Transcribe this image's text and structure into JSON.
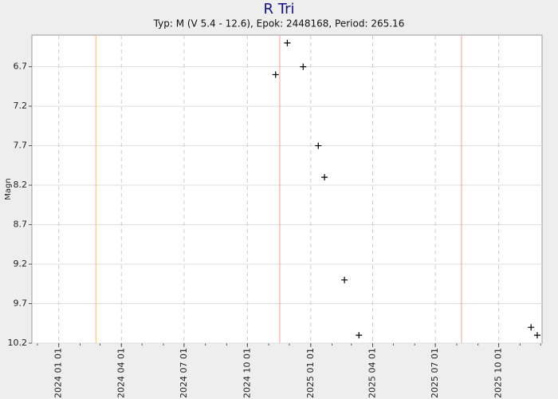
{
  "chart_data": {
    "type": "scatter",
    "title": "R Tri",
    "subtitle": "Typ: M (V 5.4 - 12.6), Epok: 2448168, Period: 265.16",
    "ylabel": "Magn",
    "x": [
      "2024-11-11",
      "2024-11-28",
      "2024-12-21",
      "2025-01-12",
      "2025-01-21",
      "2025-02-19",
      "2025-03-12",
      "2025-11-17",
      "2025-11-26"
    ],
    "values": [
      6.8,
      6.4,
      6.7,
      7.7,
      8.1,
      9.4,
      10.1,
      10.0,
      10.1
    ],
    "color": "#000000",
    "xlim": [
      "2023-11-23",
      "2025-12-03"
    ],
    "xticks": [
      {
        "value": "2024-01-01",
        "label": "2024 01 01"
      },
      {
        "value": "2024-04-01",
        "label": "2024 04 01"
      },
      {
        "value": "2024-07-01",
        "label": "2024 07 01"
      },
      {
        "value": "2024-10-01",
        "label": "2024 10 01"
      },
      {
        "value": "2025-01-01",
        "label": "2025 01 01"
      },
      {
        "value": "2025-04-01",
        "label": "2025 04 01"
      },
      {
        "value": "2025-07-01",
        "label": "2025 07 01"
      },
      {
        "value": "2025-10-01",
        "label": "2025 10 01"
      }
    ],
    "ylim": [
      6.3,
      10.2
    ],
    "y_inverted": true,
    "yticks": [
      6.7,
      7.2,
      7.7,
      8.2,
      8.7,
      9.2,
      9.7,
      10.2
    ],
    "grid": true,
    "markers": [
      {
        "x": "2024-02-24",
        "color": "#f0c080"
      },
      {
        "x": "2024-11-17",
        "color": "#f0a0a0"
      },
      {
        "x": "2025-08-08",
        "color": "#f0a0a0"
      }
    ]
  }
}
